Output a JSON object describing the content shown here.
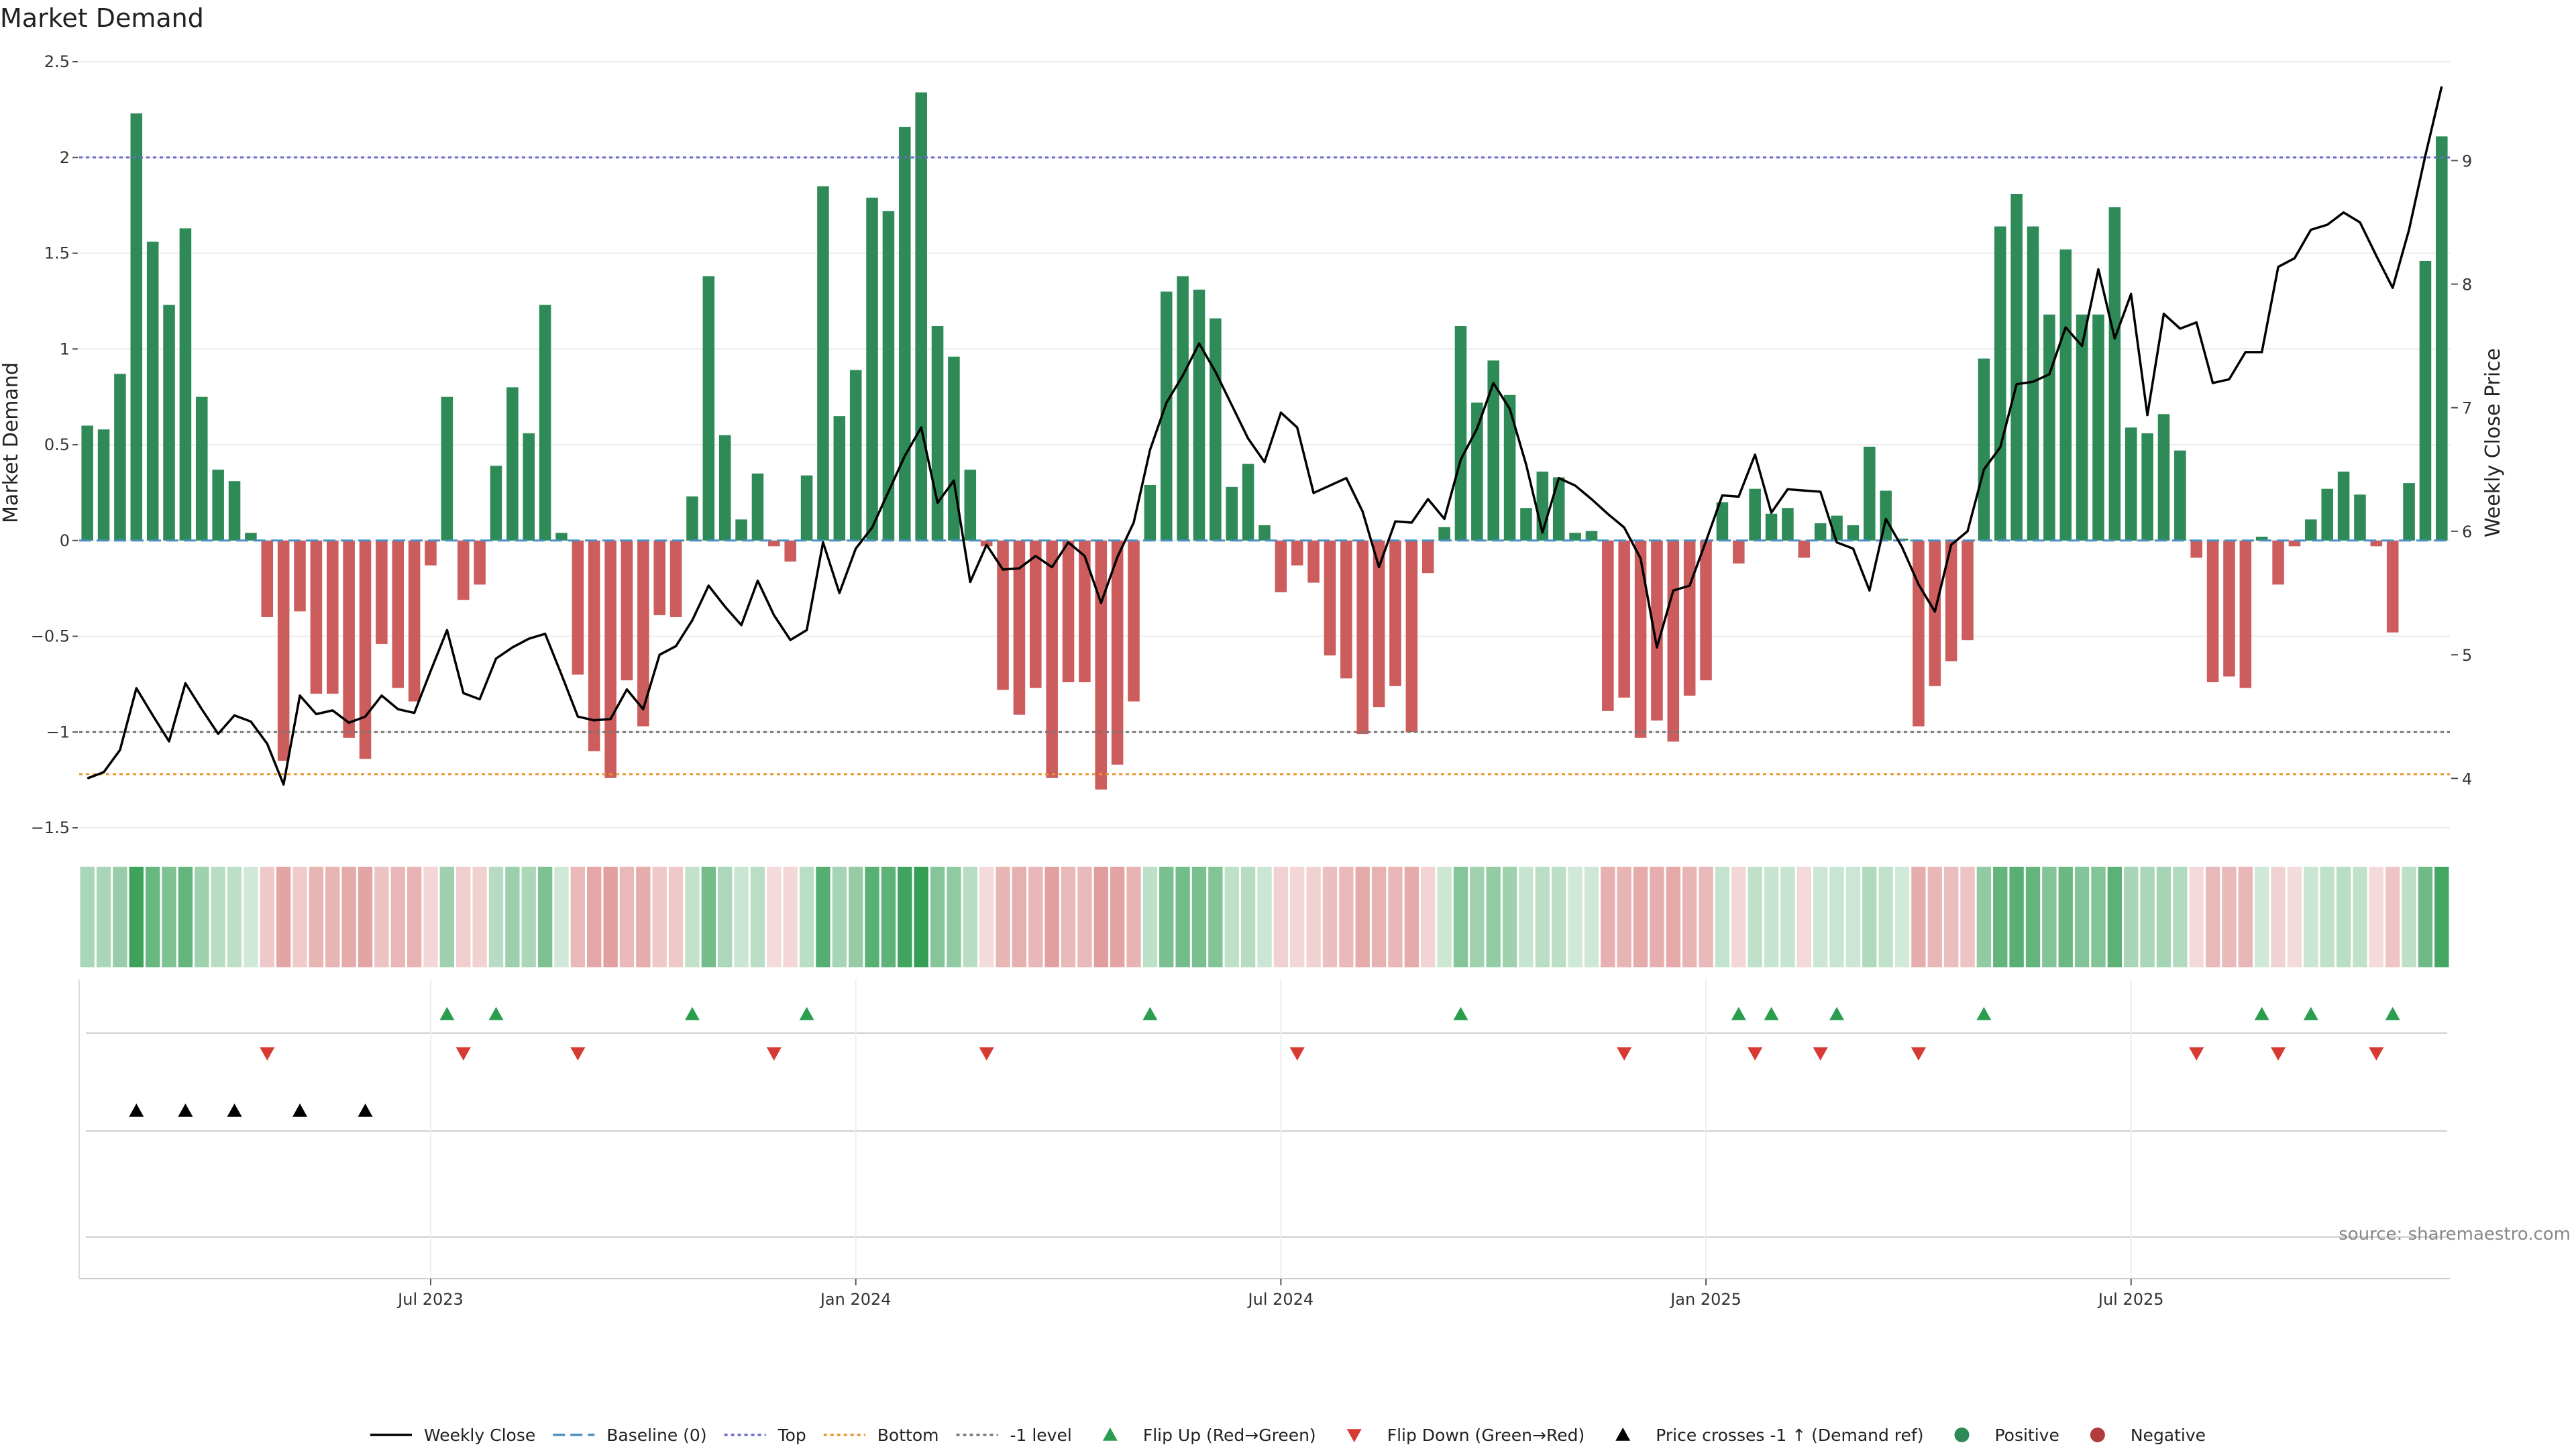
{
  "chart_data": {
    "type": "bar",
    "title": "Market Demand",
    "ylabel": "Market Demand",
    "y2label": "Weekly Close Price",
    "ylim": [
      -1.5,
      2.5
    ],
    "y2lim": [
      3.6,
      9.8
    ],
    "y_ticks": [
      -1.5,
      -1,
      -0.5,
      0,
      0.5,
      1,
      1.5,
      2,
      2.5
    ],
    "y_tick_labels": [
      "−1.5",
      "−1",
      "−0.5",
      "0",
      "0.5",
      "1",
      "1.5",
      "2",
      "2.5"
    ],
    "y2_ticks": [
      4,
      5,
      6,
      7,
      8,
      9
    ],
    "y2_tick_labels": [
      "4",
      "5",
      "6",
      "7",
      "8",
      "9"
    ],
    "x_ticks": [
      21.5,
      47.5,
      73.5,
      99.5,
      125.5
    ],
    "x_tick_labels": [
      "Jul 2023",
      "Jan 2024",
      "Jul 2024",
      "Jan 2025",
      "Jul 2025"
    ],
    "reference_lines": [
      {
        "name": "Top",
        "value": 2,
        "color": "#6a6acd"
      },
      {
        "name": "Bottom",
        "value": -1.22,
        "color": "#e8962e"
      },
      {
        "name": "-1 level",
        "value": -1,
        "color": "#777777"
      }
    ],
    "demand": [
      0.6,
      0.58,
      0.87,
      2.23,
      1.56,
      1.23,
      1.63,
      0.75,
      0.37,
      0.31,
      0.04,
      -0.4,
      -1.15,
      -0.37,
      -0.8,
      -0.8,
      -1.03,
      -1.14,
      -0.54,
      -0.77,
      -0.84,
      -0.13,
      0.75,
      -0.31,
      -0.23,
      0.39,
      0.8,
      0.56,
      1.23,
      0.04,
      -0.7,
      -1.1,
      -1.24,
      -0.73,
      -0.97,
      -0.39,
      -0.4,
      0.23,
      1.38,
      0.55,
      0.11,
      0.35,
      -0.03,
      -0.11,
      0.34,
      1.85,
      0.65,
      0.89,
      1.79,
      1.72,
      2.16,
      2.34,
      1.12,
      0.96,
      0.37,
      -0.03,
      -0.78,
      -0.91,
      -0.77,
      -1.24,
      -0.74,
      -0.74,
      -1.3,
      -1.17,
      -0.84,
      0.29,
      1.3,
      1.38,
      1.31,
      1.16,
      0.28,
      0.4,
      0.08,
      -0.27,
      -0.13,
      -0.22,
      -0.6,
      -0.72,
      -1.01,
      -0.87,
      -0.76,
      -1.0,
      -0.17,
      0.07,
      1.12,
      0.72,
      0.94,
      0.76,
      0.17,
      0.36,
      0.33,
      0.04,
      0.05,
      -0.89,
      -0.82,
      -1.03,
      -0.94,
      -1.05,
      -0.81,
      -0.73,
      0.2,
      -0.12,
      0.27,
      0.14,
      0.17,
      -0.09,
      0.09,
      0.13,
      0.08,
      0.49,
      0.26,
      0.01,
      -0.97,
      -0.76,
      -0.63,
      -0.52,
      0.95,
      1.64,
      1.81,
      1.64,
      1.18,
      1.52,
      1.18,
      1.18,
      1.74,
      0.59,
      0.56,
      0.66,
      0.47,
      -0.09,
      -0.74,
      -0.71,
      -0.77,
      0.02,
      -0.23,
      -0.03,
      0.11,
      0.27,
      0.36,
      0.24,
      -0.03,
      -0.48,
      0.3,
      1.46,
      2.11
    ],
    "weekly_close": [
      4.0,
      4.05,
      4.23,
      4.73,
      4.51,
      4.3,
      4.77,
      4.56,
      4.36,
      4.51,
      4.46,
      4.28,
      3.95,
      4.67,
      4.52,
      4.55,
      4.45,
      4.5,
      4.67,
      4.56,
      4.53,
      4.87,
      5.2,
      4.69,
      4.64,
      4.97,
      5.06,
      5.13,
      5.17,
      4.84,
      4.5,
      4.47,
      4.48,
      4.72,
      4.56,
      5.0,
      5.07,
      5.28,
      5.56,
      5.39,
      5.24,
      5.6,
      5.32,
      5.12,
      5.2,
      5.91,
      5.5,
      5.86,
      6.03,
      6.32,
      6.61,
      6.84,
      6.23,
      6.41,
      5.59,
      5.89,
      5.69,
      5.7,
      5.8,
      5.71,
      5.91,
      5.8,
      5.42,
      5.79,
      6.07,
      6.66,
      7.04,
      7.26,
      7.52,
      7.29,
      7.02,
      6.75,
      6.56,
      6.96,
      6.84,
      6.31,
      6.37,
      6.43,
      6.16,
      5.71,
      6.08,
      6.07,
      6.26,
      6.1,
      6.58,
      6.83,
      7.2,
      6.99,
      6.54,
      5.99,
      6.43,
      6.37,
      6.26,
      6.14,
      6.03,
      5.78,
      5.06,
      5.52,
      5.56,
      5.92,
      6.29,
      6.28,
      6.62,
      6.15,
      6.34,
      6.33,
      6.32,
      5.91,
      5.86,
      5.52,
      6.1,
      5.87,
      5.57,
      5.35,
      5.89,
      6.0,
      6.5,
      6.68,
      7.19,
      7.21,
      7.27,
      7.65,
      7.5,
      8.12,
      7.56,
      7.92,
      6.94,
      7.76,
      7.64,
      7.69,
      7.2,
      7.23,
      7.45,
      7.45,
      8.14,
      8.21,
      8.44,
      8.48,
      8.58,
      8.5,
      8.23,
      7.97,
      8.44,
      9.04,
      9.6
    ],
    "flip_up_x": [
      22,
      25,
      37,
      44,
      65,
      84,
      101,
      103,
      107,
      116,
      133,
      136,
      141
    ],
    "flip_down_x": [
      11,
      23,
      30,
      42,
      55,
      74,
      94,
      102,
      106,
      112,
      129,
      134,
      140
    ],
    "price_cross_x": [
      3,
      6,
      9,
      13,
      17
    ],
    "source": "source: sharemaestro.com",
    "legend": [
      {
        "label": "Weekly Close",
        "kind": "line-solid",
        "color": "#000000"
      },
      {
        "label": "Baseline (0)",
        "kind": "line-dash",
        "color": "#4a8fc1"
      },
      {
        "label": "Top",
        "kind": "line-dot",
        "color": "#6a6acd"
      },
      {
        "label": "Bottom",
        "kind": "line-dot",
        "color": "#e8962e"
      },
      {
        "label": "-1 level",
        "kind": "line-dot",
        "color": "#777777"
      },
      {
        "label": "Flip Up (Red→Green)",
        "kind": "tri-up",
        "color": "#2a9d4f"
      },
      {
        "label": "Flip Down (Green→Red)",
        "kind": "tri-down",
        "color": "#d63a32"
      },
      {
        "label": "Price crosses -1 ↑ (Demand ref)",
        "kind": "tri-up",
        "color": "#000000"
      },
      {
        "label": "Positive",
        "kind": "dot",
        "color": "#2e8b57"
      },
      {
        "label": "Negative",
        "kind": "dot",
        "color": "#b23b3b"
      }
    ],
    "colors": {
      "positive": "#2e8b57",
      "negative": "#cd5c5c",
      "flip_up": "#2a9d4f",
      "flip_down": "#d63a32"
    }
  }
}
